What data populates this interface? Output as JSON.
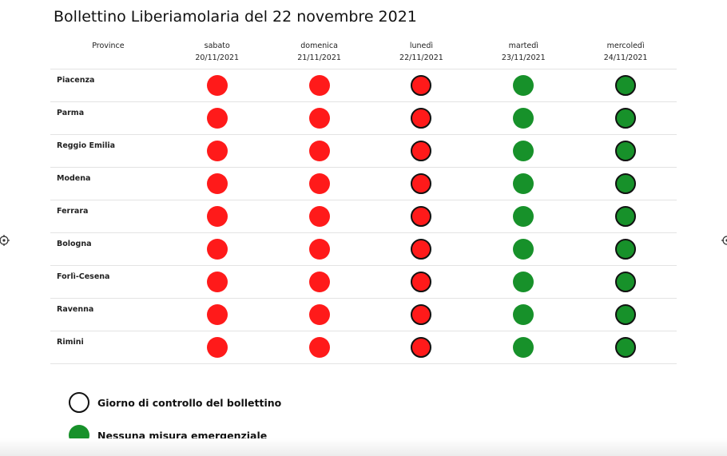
{
  "title": "Bollettino Liberiamolaria del 22 novembre 2021",
  "header": {
    "province_label": "Province",
    "days": [
      {
        "name": "sabato",
        "date": "20/11/2021"
      },
      {
        "name": "domenica",
        "date": "21/11/2021"
      },
      {
        "name": "lunedì",
        "date": "22/11/2021"
      },
      {
        "name": "martedì",
        "date": "23/11/2021"
      },
      {
        "name": "mercoledì",
        "date": "24/11/2021"
      }
    ]
  },
  "colors": {
    "red": "#ff1a1a",
    "green": "#17912a",
    "outline": "#111111"
  },
  "day_status": [
    {
      "color": "red",
      "control_day": false
    },
    {
      "color": "red",
      "control_day": false
    },
    {
      "color": "red",
      "control_day": true
    },
    {
      "color": "green",
      "control_day": false
    },
    {
      "color": "green",
      "control_day": true
    }
  ],
  "provinces": [
    "Piacenza",
    "Parma",
    "Reggio Emilia",
    "Modena",
    "Ferrara",
    "Bologna",
    "Forlì-Cesena",
    "Ravenna",
    "Rimini"
  ],
  "legend": [
    {
      "text": "Giorno di controllo del bollettino",
      "style": "outline"
    },
    {
      "text": "Nessuna misura emergenziale",
      "style": "green"
    }
  ]
}
